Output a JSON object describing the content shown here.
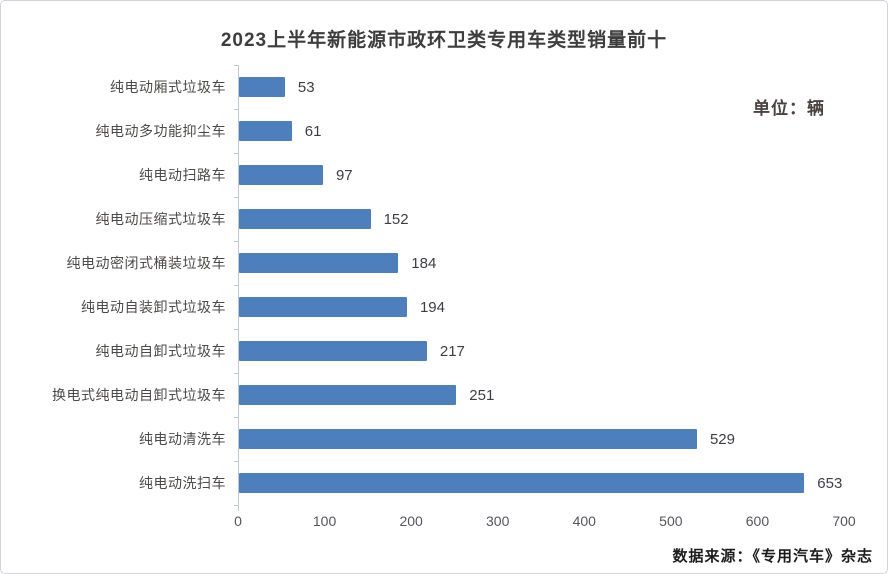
{
  "header": {
    "title": "2023上半年新能源市政环卫类专用车类型销量前十",
    "unit_label": "单位：辆"
  },
  "footer": {
    "source_label": "数据来源：《专用汽车》杂志"
  },
  "chart_data": {
    "type": "bar",
    "orientation": "horizontal",
    "title": "2023上半年新能源市政环卫类专用车类型销量前十",
    "categories": [
      "纯电动厢式垃圾车",
      "纯电动多功能抑尘车",
      "纯电动扫路车",
      "纯电动压缩式垃圾车",
      "纯电动密闭式桶装垃圾车",
      "纯电动自装卸式垃圾车",
      "纯电动自卸式垃圾车",
      "换电式纯电动自卸式垃圾车",
      "纯电动清洗车",
      "纯电动洗扫车"
    ],
    "values": [
      53,
      61,
      97,
      152,
      184,
      194,
      217,
      251,
      529,
      653
    ],
    "xlabel": "",
    "ylabel": "",
    "xlim": [
      0,
      700
    ],
    "x_ticks": [
      0,
      100,
      200,
      300,
      400,
      500,
      600,
      700
    ],
    "unit": "单位：辆",
    "source": "数据来源：《专用汽车》杂志",
    "bar_color": "#4e7fbd",
    "grid": false,
    "legend_position": "none",
    "value_labels_shown": true
  }
}
